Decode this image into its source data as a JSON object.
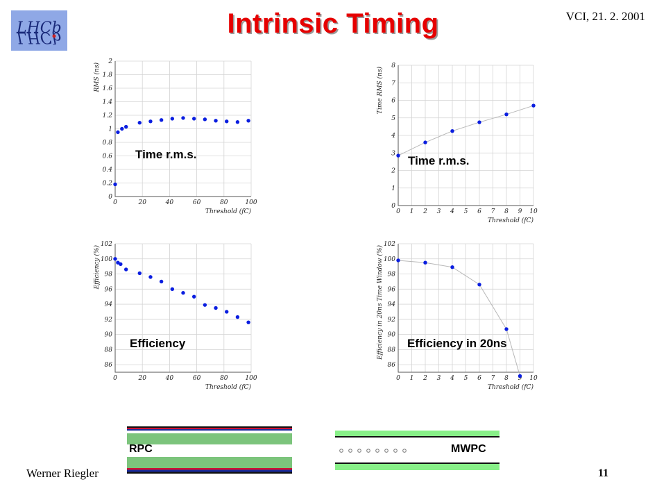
{
  "header": {
    "title": "Intrinsic Timing",
    "conference": "VCI, 21. 2. 2001"
  },
  "footer": {
    "author": "Werner Riegler",
    "page": "11"
  },
  "logo": {
    "text": "LHCb"
  },
  "chart_data": [
    {
      "type": "scatter",
      "label": "Time r.m.s.",
      "xlabel": "Threshold (fC)",
      "ylabel": "RMS (ns)",
      "xlim": [
        0,
        100
      ],
      "ylim": [
        0,
        2
      ],
      "xticks": [
        0,
        20,
        40,
        60,
        80,
        100
      ],
      "yticks": [
        0,
        0.2,
        0.4,
        0.6,
        0.8,
        1,
        1.2,
        1.4,
        1.6,
        1.8,
        2
      ],
      "connect": false,
      "grid": true,
      "x": [
        0,
        2,
        5,
        8,
        18,
        26,
        34,
        42,
        50,
        58,
        66,
        74,
        82,
        90,
        98
      ],
      "y": [
        0.18,
        0.95,
        1.0,
        1.03,
        1.09,
        1.11,
        1.13,
        1.15,
        1.16,
        1.15,
        1.14,
        1.12,
        1.11,
        1.1,
        1.12
      ]
    },
    {
      "type": "line",
      "label": "Time r.m.s.",
      "xlabel": "Threshold (fC)",
      "ylabel": "Time RMS (ns)",
      "xlim": [
        0,
        10
      ],
      "ylim": [
        0,
        8
      ],
      "xticks": [
        0,
        1,
        2,
        3,
        4,
        5,
        6,
        7,
        8,
        9,
        10
      ],
      "yticks": [
        0,
        1,
        2,
        3,
        4,
        5,
        6,
        7,
        8
      ],
      "connect": true,
      "grid": true,
      "x": [
        0,
        2,
        4,
        6,
        8,
        10
      ],
      "y": [
        2.85,
        3.6,
        4.25,
        4.75,
        5.2,
        5.7
      ]
    },
    {
      "type": "scatter",
      "label": "Efficiency",
      "xlabel": "Threshold (fC)",
      "ylabel": "Efficiency (%)",
      "xlim": [
        0,
        100
      ],
      "ylim": [
        85,
        102
      ],
      "xticks": [
        0,
        20,
        40,
        60,
        80,
        100
      ],
      "yticks": [
        86,
        88,
        90,
        92,
        94,
        96,
        98,
        100,
        102
      ],
      "connect": false,
      "grid": true,
      "x": [
        0,
        2,
        4,
        8,
        18,
        26,
        34,
        42,
        50,
        58,
        66,
        74,
        82,
        90,
        98
      ],
      "y": [
        100.0,
        99.5,
        99.3,
        98.6,
        98.1,
        97.6,
        97.0,
        96.0,
        95.5,
        95.0,
        93.9,
        93.5,
        93.0,
        92.3,
        91.6
      ]
    },
    {
      "type": "line",
      "label": "Efficiency in 20ns",
      "xlabel": "Threshold (fC)",
      "ylabel": "Efficiency in 20ns Time Window (%)",
      "xlim": [
        0,
        10
      ],
      "ylim": [
        85,
        102
      ],
      "xticks": [
        0,
        1,
        2,
        3,
        4,
        5,
        6,
        7,
        8,
        9,
        10
      ],
      "yticks": [
        86,
        88,
        90,
        92,
        94,
        96,
        98,
        100,
        102
      ],
      "connect": true,
      "grid": true,
      "x": [
        0,
        2,
        4,
        6,
        8,
        9
      ],
      "y": [
        99.8,
        99.5,
        98.9,
        96.6,
        90.7,
        84.5
      ]
    }
  ],
  "diagrams": {
    "rpc_label": "RPC",
    "mwpc_label": "MWPC"
  },
  "colors": {
    "title": "#e60000",
    "marker": "#0a1ee0",
    "line": "#b8b8b8",
    "grid": "#d4d4d4",
    "rpc_green": "#7cc47c",
    "mwpc_green": "#88f088"
  }
}
